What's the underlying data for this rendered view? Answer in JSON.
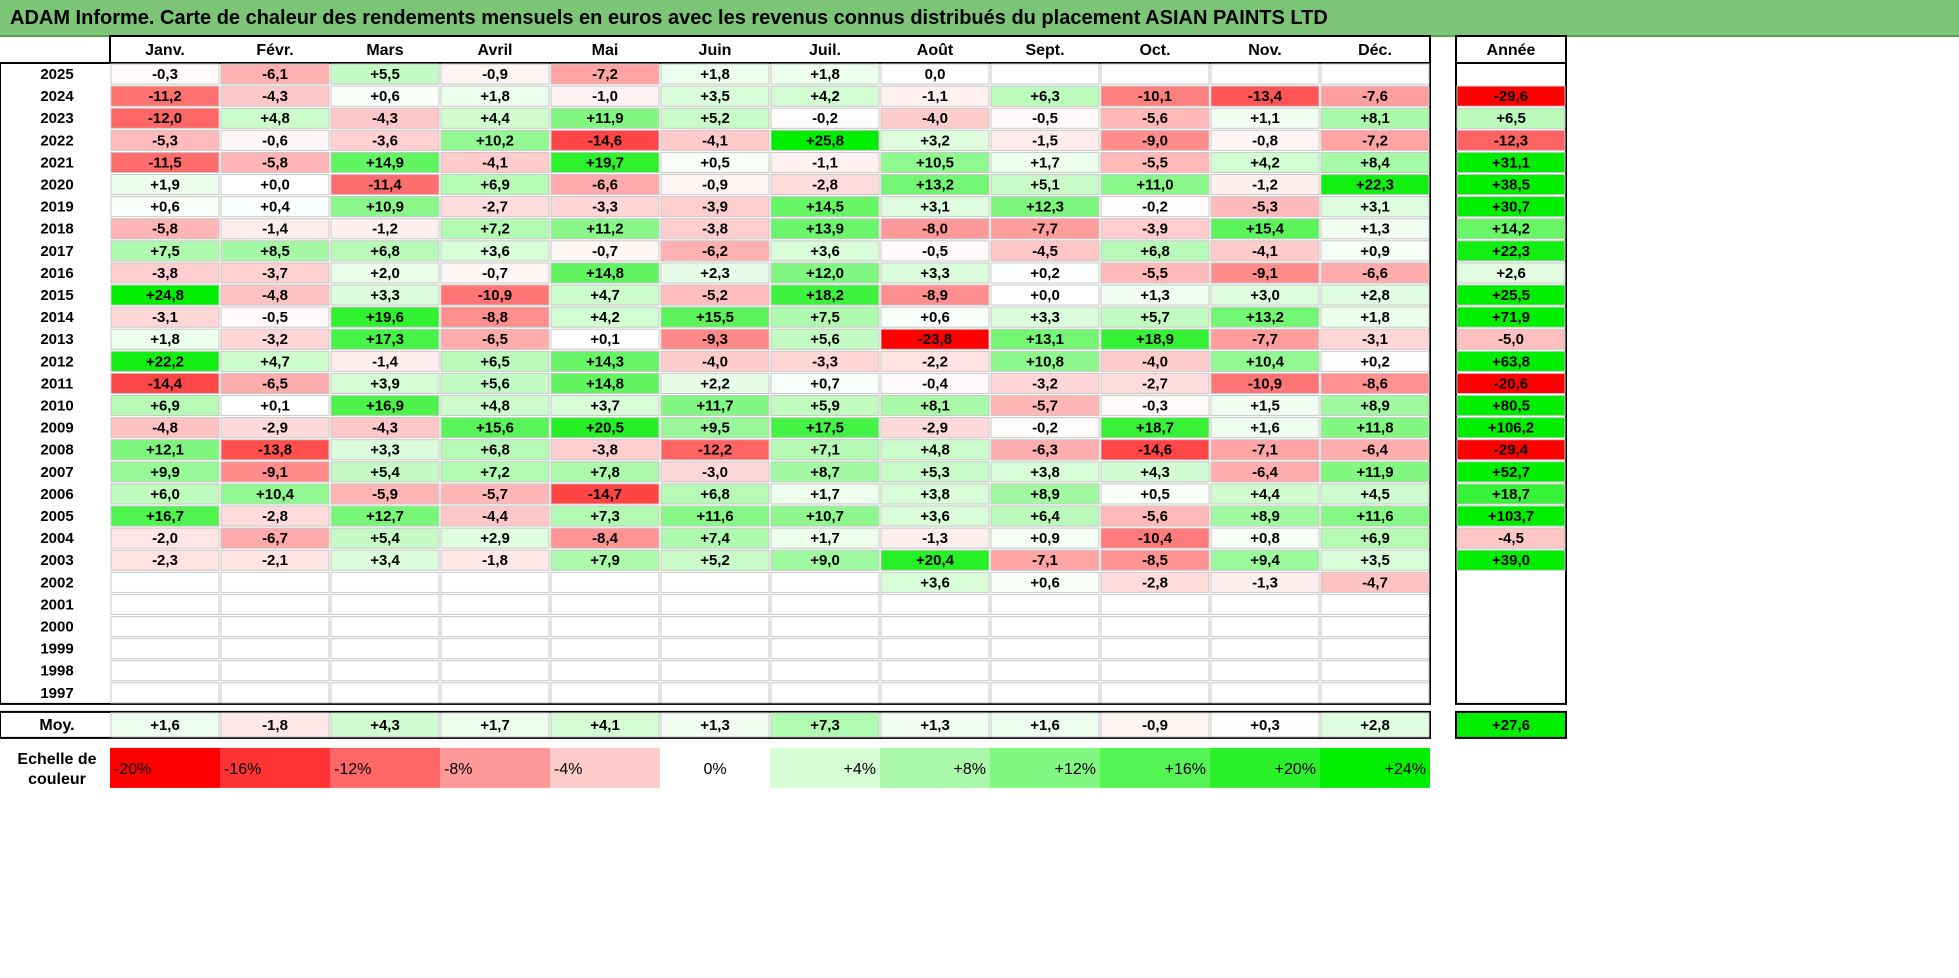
{
  "title": "ADAM Informe. Carte de chaleur des rendements mensuels en euros avec les revenus connus distribués du placement ASIAN PAINTS LTD",
  "chart_data": {
    "type": "heatmap",
    "months": [
      "Janv.",
      "Févr.",
      "Mars",
      "Avril",
      "Mai",
      "Juin",
      "Juil.",
      "Août",
      "Sept.",
      "Oct.",
      "Nov.",
      "Déc."
    ],
    "year_column_label": "Année",
    "rows": [
      {
        "year": "2025",
        "values": [
          "-0,3",
          "-6,1",
          "+5,5",
          "-0,9",
          "-7,2",
          "+1,8",
          "+1,8",
          "0,0",
          null,
          null,
          null,
          null
        ],
        "annual": null
      },
      {
        "year": "2024",
        "values": [
          "-11,2",
          "-4,3",
          "+0,6",
          "+1,8",
          "-1,0",
          "+3,5",
          "+4,2",
          "-1,1",
          "+6,3",
          "-10,1",
          "-13,4",
          "-7,6"
        ],
        "annual": "-29,6"
      },
      {
        "year": "2023",
        "values": [
          "-12,0",
          "+4,8",
          "-4,3",
          "+4,4",
          "+11,9",
          "+5,2",
          "-0,2",
          "-4,0",
          "-0,5",
          "-5,6",
          "+1,1",
          "+8,1"
        ],
        "annual": "+6,5"
      },
      {
        "year": "2022",
        "values": [
          "-5,3",
          "-0,6",
          "-3,6",
          "+10,2",
          "-14,6",
          "-4,1",
          "+25,8",
          "+3,2",
          "-1,5",
          "-9,0",
          "-0,8",
          "-7,2"
        ],
        "annual": "-12,3"
      },
      {
        "year": "2021",
        "values": [
          "-11,5",
          "-5,8",
          "+14,9",
          "-4,1",
          "+19,7",
          "+0,5",
          "-1,1",
          "+10,5",
          "+1,7",
          "-5,5",
          "+4,2",
          "+8,4"
        ],
        "annual": "+31,1"
      },
      {
        "year": "2020",
        "values": [
          "+1,9",
          "+0,0",
          "-11,4",
          "+6,9",
          "-6,6",
          "-0,9",
          "-2,8",
          "+13,2",
          "+5,1",
          "+11,0",
          "-1,2",
          "+22,3"
        ],
        "annual": "+38,5"
      },
      {
        "year": "2019",
        "values": [
          "+0,6",
          "+0,4",
          "+10,9",
          "-2,7",
          "-3,3",
          "-3,9",
          "+14,5",
          "+3,1",
          "+12,3",
          "-0,2",
          "-5,3",
          "+3,1"
        ],
        "annual": "+30,7"
      },
      {
        "year": "2018",
        "values": [
          "-5,8",
          "-1,4",
          "-1,2",
          "+7,2",
          "+11,2",
          "-3,8",
          "+13,9",
          "-8,0",
          "-7,7",
          "-3,9",
          "+15,4",
          "+1,3"
        ],
        "annual": "+14,2"
      },
      {
        "year": "2017",
        "values": [
          "+7,5",
          "+8,5",
          "+6,8",
          "+3,6",
          "-0,7",
          "-6,2",
          "+3,6",
          "-0,5",
          "-4,5",
          "+6,8",
          "-4,1",
          "+0,9"
        ],
        "annual": "+22,3"
      },
      {
        "year": "2016",
        "values": [
          "-3,8",
          "-3,7",
          "+2,0",
          "-0,7",
          "+14,8",
          "+2,3",
          "+12,0",
          "+3,3",
          "+0,2",
          "-5,5",
          "-9,1",
          "-6,6"
        ],
        "annual": "+2,6"
      },
      {
        "year": "2015",
        "values": [
          "+24,8",
          "-4,8",
          "+3,3",
          "-10,9",
          "+4,7",
          "-5,2",
          "+18,2",
          "-8,9",
          "+0,0",
          "+1,3",
          "+3,0",
          "+2,8"
        ],
        "annual": "+25,5"
      },
      {
        "year": "2014",
        "values": [
          "-3,1",
          "-0,5",
          "+19,6",
          "-8,8",
          "+4,2",
          "+15,5",
          "+7,5",
          "+0,6",
          "+3,3",
          "+5,7",
          "+13,2",
          "+1,8"
        ],
        "annual": "+71,9"
      },
      {
        "year": "2013",
        "values": [
          "+1,8",
          "-3,2",
          "+17,3",
          "-6,5",
          "+0,1",
          "-9,3",
          "+5,6",
          "-23,8",
          "+13,1",
          "+18,9",
          "-7,7",
          "-3,1"
        ],
        "annual": "-5,0"
      },
      {
        "year": "2012",
        "values": [
          "+22,2",
          "+4,7",
          "-1,4",
          "+6,5",
          "+14,3",
          "-4,0",
          "-3,3",
          "-2,2",
          "+10,8",
          "-4,0",
          "+10,4",
          "+0,2"
        ],
        "annual": "+63,8"
      },
      {
        "year": "2011",
        "values": [
          "-14,4",
          "-6,5",
          "+3,9",
          "+5,6",
          "+14,8",
          "+2,2",
          "+0,7",
          "-0,4",
          "-3,2",
          "-2,7",
          "-10,9",
          "-8,6"
        ],
        "annual": "-20,6"
      },
      {
        "year": "2010",
        "values": [
          "+6,9",
          "+0,1",
          "+16,9",
          "+4,8",
          "+3,7",
          "+11,7",
          "+5,9",
          "+8,1",
          "-5,7",
          "-0,3",
          "+1,5",
          "+8,9"
        ],
        "annual": "+80,5"
      },
      {
        "year": "2009",
        "values": [
          "-4,8",
          "-2,9",
          "-4,3",
          "+15,6",
          "+20,5",
          "+9,5",
          "+17,5",
          "-2,9",
          "-0,2",
          "+18,7",
          "+1,6",
          "+11,8"
        ],
        "annual": "+106,2"
      },
      {
        "year": "2008",
        "values": [
          "+12,1",
          "-13,8",
          "+3,3",
          "+6,8",
          "-3,8",
          "-12,2",
          "+7,1",
          "+4,8",
          "-6,3",
          "-14,6",
          "-7,1",
          "-6,4"
        ],
        "annual": "-29,4"
      },
      {
        "year": "2007",
        "values": [
          "+9,9",
          "-9,1",
          "+5,4",
          "+7,2",
          "+7,8",
          "-3,0",
          "+8,7",
          "+5,3",
          "+3,8",
          "+4,3",
          "-6,4",
          "+11,9"
        ],
        "annual": "+52,7"
      },
      {
        "year": "2006",
        "values": [
          "+6,0",
          "+10,4",
          "-5,9",
          "-5,7",
          "-14,7",
          "+6,8",
          "+1,7",
          "+3,8",
          "+8,9",
          "+0,5",
          "+4,4",
          "+4,5"
        ],
        "annual": "+18,7"
      },
      {
        "year": "2005",
        "values": [
          "+16,7",
          "-2,8",
          "+12,7",
          "-4,4",
          "+7,3",
          "+11,6",
          "+10,7",
          "+3,6",
          "+6,4",
          "-5,6",
          "+8,9",
          "+11,6"
        ],
        "annual": "+103,7"
      },
      {
        "year": "2004",
        "values": [
          "-2,0",
          "-6,7",
          "+5,4",
          "+2,9",
          "-8,4",
          "+7,4",
          "+1,7",
          "-1,3",
          "+0,9",
          "-10,4",
          "+0,8",
          "+6,9"
        ],
        "annual": "-4,5"
      },
      {
        "year": "2003",
        "values": [
          "-2,3",
          "-2,1",
          "+3,4",
          "-1,8",
          "+7,9",
          "+5,2",
          "+9,0",
          "+20,4",
          "-7,1",
          "-8,5",
          "+9,4",
          "+3,5"
        ],
        "annual": "+39,0"
      },
      {
        "year": "2002",
        "values": [
          null,
          null,
          null,
          null,
          null,
          null,
          null,
          "+3,6",
          "+0,6",
          "-2,8",
          "-1,3",
          "-4,7"
        ],
        "annual": null
      },
      {
        "year": "2001",
        "values": [
          null,
          null,
          null,
          null,
          null,
          null,
          null,
          null,
          null,
          null,
          null,
          null
        ],
        "annual": null
      },
      {
        "year": "2000",
        "values": [
          null,
          null,
          null,
          null,
          null,
          null,
          null,
          null,
          null,
          null,
          null,
          null
        ],
        "annual": null
      },
      {
        "year": "1999",
        "values": [
          null,
          null,
          null,
          null,
          null,
          null,
          null,
          null,
          null,
          null,
          null,
          null
        ],
        "annual": null
      },
      {
        "year": "1998",
        "values": [
          null,
          null,
          null,
          null,
          null,
          null,
          null,
          null,
          null,
          null,
          null,
          null
        ],
        "annual": null
      },
      {
        "year": "1997",
        "values": [
          null,
          null,
          null,
          null,
          null,
          null,
          null,
          null,
          null,
          null,
          null,
          null
        ],
        "annual": null
      }
    ],
    "average": {
      "label": "Moy.",
      "values": [
        "+1,6",
        "-1,8",
        "+4,3",
        "+1,7",
        "+4,1",
        "+1,3",
        "+7,3",
        "+1,3",
        "+1,6",
        "-0,9",
        "+0,3",
        "+2,8"
      ],
      "annual": "+27,6"
    },
    "color_scale": {
      "label_line1": "Echelle de",
      "label_line2": "couleur",
      "stops": [
        "-20%",
        "-16%",
        "-12%",
        "-8%",
        "-4%",
        "0%",
        "+4%",
        "+8%",
        "+12%",
        "+16%",
        "+20%",
        "+24%"
      ],
      "stop_values": [
        -20,
        -16,
        -12,
        -8,
        -4,
        0,
        4,
        8,
        12,
        16,
        20,
        24
      ]
    },
    "colors": {
      "negative": "#ff0000",
      "positive": "#00ee00",
      "neutral": "#ffffff",
      "title_background": "#7cc576"
    }
  }
}
